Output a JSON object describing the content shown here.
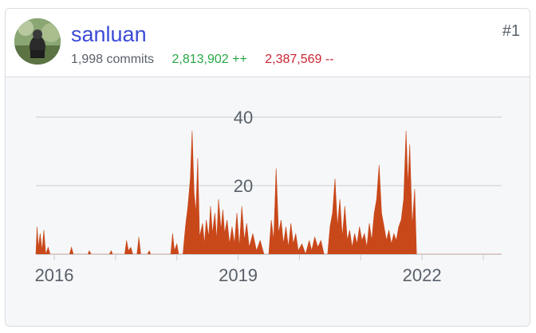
{
  "user": {
    "username": "sanluan",
    "commits": "1,998 commits",
    "additions": "2,813,902 ++",
    "deletions": "2,387,569 --",
    "rank": "#1"
  },
  "colors": {
    "area_fill": "#c9481a",
    "username": "#3b4bd6",
    "additions": "#28a745",
    "deletions": "#cb2431"
  },
  "chart_data": {
    "type": "area",
    "title": "",
    "xlabel": "",
    "ylabel": "",
    "ylim": [
      0,
      40
    ],
    "y_ticks": [
      20,
      40
    ],
    "y_tick_labels": [
      "20",
      "40"
    ],
    "x_tick_labels": [
      "2016",
      "2019",
      "2022"
    ],
    "x_range": [
      2015.7,
      2023.3
    ],
    "grid": true,
    "series": [
      {
        "values": [
          [
            2015.7,
            0
          ],
          [
            2015.72,
            8
          ],
          [
            2015.74,
            2
          ],
          [
            2015.77,
            6
          ],
          [
            2015.8,
            1
          ],
          [
            2015.83,
            7
          ],
          [
            2015.86,
            0
          ],
          [
            2015.9,
            2
          ],
          [
            2015.93,
            0
          ],
          [
            2016.25,
            0
          ],
          [
            2016.28,
            2
          ],
          [
            2016.31,
            0
          ],
          [
            2016.55,
            0
          ],
          [
            2016.57,
            1
          ],
          [
            2016.6,
            0
          ],
          [
            2016.9,
            0
          ],
          [
            2016.93,
            1
          ],
          [
            2016.95,
            0
          ],
          [
            2017.15,
            0
          ],
          [
            2017.18,
            4
          ],
          [
            2017.21,
            1
          ],
          [
            2017.25,
            2
          ],
          [
            2017.28,
            0
          ],
          [
            2017.35,
            0
          ],
          [
            2017.38,
            5
          ],
          [
            2017.41,
            0
          ],
          [
            2017.52,
            0
          ],
          [
            2017.55,
            1
          ],
          [
            2017.57,
            0
          ],
          [
            2017.9,
            0
          ],
          [
            2017.93,
            6
          ],
          [
            2017.96,
            1
          ],
          [
            2018.0,
            3
          ],
          [
            2018.03,
            0
          ],
          [
            2018.1,
            0
          ],
          [
            2018.14,
            8
          ],
          [
            2018.18,
            14
          ],
          [
            2018.22,
            22
          ],
          [
            2018.25,
            36
          ],
          [
            2018.28,
            18
          ],
          [
            2018.31,
            12
          ],
          [
            2018.34,
            28
          ],
          [
            2018.37,
            5
          ],
          [
            2018.42,
            9
          ],
          [
            2018.45,
            3
          ],
          [
            2018.48,
            10
          ],
          [
            2018.52,
            5
          ],
          [
            2018.55,
            14
          ],
          [
            2018.58,
            6
          ],
          [
            2018.62,
            12
          ],
          [
            2018.65,
            4
          ],
          [
            2018.68,
            16
          ],
          [
            2018.72,
            7
          ],
          [
            2018.75,
            13
          ],
          [
            2018.78,
            6
          ],
          [
            2018.82,
            10
          ],
          [
            2018.86,
            3
          ],
          [
            2018.9,
            8
          ],
          [
            2018.94,
            3
          ],
          [
            2018.98,
            12
          ],
          [
            2019.02,
            2
          ],
          [
            2019.06,
            14
          ],
          [
            2019.1,
            4
          ],
          [
            2019.14,
            9
          ],
          [
            2019.18,
            2
          ],
          [
            2019.24,
            6
          ],
          [
            2019.3,
            1
          ],
          [
            2019.36,
            4
          ],
          [
            2019.42,
            0
          ],
          [
            2019.5,
            0
          ],
          [
            2019.54,
            10
          ],
          [
            2019.58,
            4
          ],
          [
            2019.62,
            25
          ],
          [
            2019.66,
            6
          ],
          [
            2019.7,
            10
          ],
          [
            2019.74,
            3
          ],
          [
            2019.78,
            8
          ],
          [
            2019.82,
            2
          ],
          [
            2019.86,
            9
          ],
          [
            2019.9,
            3
          ],
          [
            2019.94,
            6
          ],
          [
            2019.98,
            1
          ],
          [
            2020.04,
            3
          ],
          [
            2020.1,
            0
          ],
          [
            2020.16,
            4
          ],
          [
            2020.2,
            1
          ],
          [
            2020.25,
            5
          ],
          [
            2020.3,
            2
          ],
          [
            2020.35,
            4
          ],
          [
            2020.4,
            0
          ],
          [
            2020.46,
            0
          ],
          [
            2020.5,
            8
          ],
          [
            2020.54,
            12
          ],
          [
            2020.58,
            22
          ],
          [
            2020.62,
            8
          ],
          [
            2020.66,
            16
          ],
          [
            2020.7,
            5
          ],
          [
            2020.74,
            14
          ],
          [
            2020.78,
            4
          ],
          [
            2020.82,
            7
          ],
          [
            2020.86,
            2
          ],
          [
            2020.9,
            6
          ],
          [
            2020.94,
            3
          ],
          [
            2020.98,
            8
          ],
          [
            2021.02,
            4
          ],
          [
            2021.06,
            6
          ],
          [
            2021.1,
            2
          ],
          [
            2021.14,
            9
          ],
          [
            2021.18,
            4
          ],
          [
            2021.22,
            12
          ],
          [
            2021.26,
            16
          ],
          [
            2021.3,
            26
          ],
          [
            2021.34,
            12
          ],
          [
            2021.38,
            8
          ],
          [
            2021.42,
            4
          ],
          [
            2021.46,
            7
          ],
          [
            2021.5,
            3
          ],
          [
            2021.54,
            6
          ],
          [
            2021.58,
            4
          ],
          [
            2021.62,
            8
          ],
          [
            2021.66,
            10
          ],
          [
            2021.7,
            16
          ],
          [
            2021.74,
            36
          ],
          [
            2021.77,
            20
          ],
          [
            2021.8,
            32
          ],
          [
            2021.84,
            8
          ],
          [
            2021.88,
            19
          ],
          [
            2021.91,
            0
          ],
          [
            2023.3,
            0
          ]
        ]
      }
    ]
  }
}
